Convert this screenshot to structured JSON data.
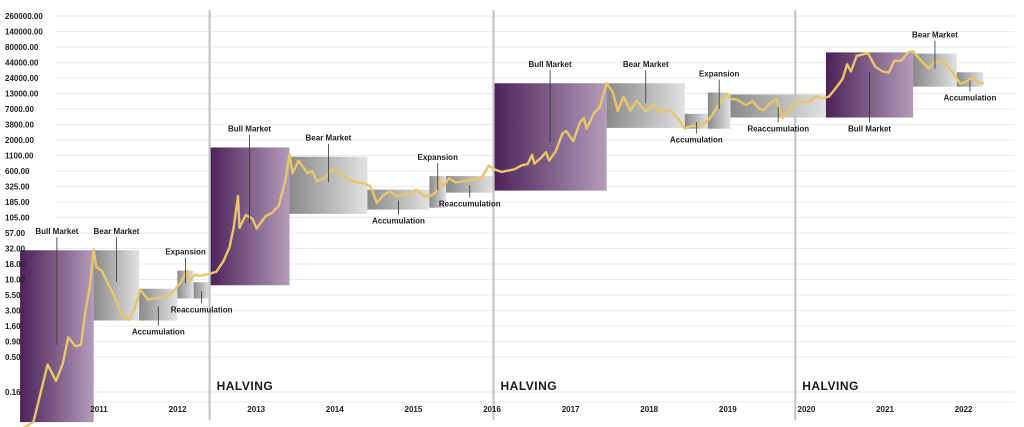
{
  "chart_data": {
    "type": "line",
    "title": "",
    "xlabel": "",
    "ylabel": "",
    "y_scale": "log",
    "y_tick_labels": [
      "260000.00",
      "140000.00",
      "80000.00",
      "44000.00",
      "24000.00",
      "13000.00",
      "7000.00",
      "3800.00",
      "2000.00",
      "1100.00",
      "600.00",
      "325.00",
      "185.00",
      "105.00",
      "57.00",
      "32.00",
      "18.00",
      "10.00",
      "5.50",
      "3.00",
      "1.60",
      "0.90",
      "0.50",
      "0.16"
    ],
    "x_tick_labels": [
      "2011",
      "2012",
      "2013",
      "2014",
      "2015",
      "2016",
      "2017",
      "2018",
      "2019",
      "2020",
      "2021",
      "2022"
    ],
    "line_color": "#e8c66a",
    "halvings": [
      {
        "label": "HALVING",
        "date": "2012-11-28"
      },
      {
        "label": "HALVING",
        "date": "2016-07-09"
      },
      {
        "label": "HALVING",
        "date": "2020-05-11"
      }
    ],
    "phases": [
      {
        "label": "Bull Market",
        "style": "bull",
        "start": "2010-07-01",
        "end": "2011-06-08",
        "low": 0.06,
        "high": 30,
        "label_pos": "above"
      },
      {
        "label": "Bear Market",
        "style": "bear",
        "start": "2011-06-08",
        "end": "2012-01-05",
        "low": 2.0,
        "high": 30,
        "label_pos": "above"
      },
      {
        "label": "Accumulation",
        "style": "bear",
        "start": "2012-01-05",
        "end": "2012-07-01",
        "low": 2.0,
        "high": 7.0,
        "label_pos": "below"
      },
      {
        "label": "Expansion",
        "style": "bear",
        "start": "2012-07-01",
        "end": "2012-09-15",
        "low": 4.8,
        "high": 14,
        "label_pos": "above"
      },
      {
        "label": "Reaccumulation",
        "style": "bear",
        "start": "2012-09-15",
        "end": "2012-11-28",
        "low": 4.8,
        "high": 9.0,
        "label_pos": "below"
      },
      {
        "label": "Bull Market",
        "style": "bull",
        "start": "2012-11-28",
        "end": "2013-12-04",
        "low": 8.0,
        "high": 1500,
        "label_pos": "above"
      },
      {
        "label": "Bear Market",
        "style": "bear",
        "start": "2013-12-04",
        "end": "2014-12-01",
        "low": 120,
        "high": 1050,
        "label_pos": "above"
      },
      {
        "label": "Accumulation",
        "style": "bear",
        "start": "2014-12-01",
        "end": "2015-09-15",
        "low": 140,
        "high": 290,
        "label_pos": "below"
      },
      {
        "label": "Expansion",
        "style": "bear",
        "start": "2015-09-15",
        "end": "2015-12-01",
        "low": 150,
        "high": 490,
        "label_pos": "above"
      },
      {
        "label": "Reaccumulation",
        "style": "bear",
        "start": "2015-12-01",
        "end": "2016-07-09",
        "low": 260,
        "high": 490,
        "label_pos": "below"
      },
      {
        "label": "Bull Market",
        "style": "bull",
        "start": "2016-07-09",
        "end": "2017-12-17",
        "low": 280,
        "high": 19500,
        "label_pos": "above"
      },
      {
        "label": "Bear Market",
        "style": "bear",
        "start": "2017-12-17",
        "end": "2018-12-15",
        "low": 3300,
        "high": 19500,
        "label_pos": "above"
      },
      {
        "label": "Accumulation",
        "style": "bear",
        "start": "2018-12-15",
        "end": "2019-04-01",
        "low": 3200,
        "high": 5800,
        "label_pos": "below"
      },
      {
        "label": "Expansion",
        "style": "bear",
        "start": "2019-04-01",
        "end": "2019-07-15",
        "low": 3200,
        "high": 13500,
        "label_pos": "above"
      },
      {
        "label": "Reaccumulation",
        "style": "bear",
        "start": "2019-07-15",
        "end": "2020-10-01",
        "low": 5000,
        "high": 12500,
        "label_pos": "below"
      },
      {
        "label": "Bull Market",
        "style": "bull",
        "start": "2020-10-01",
        "end": "2021-11-10",
        "low": 5000,
        "high": 65000,
        "label_pos": "below"
      },
      {
        "label": "Bear Market",
        "style": "bear",
        "start": "2021-11-10",
        "end": "2022-06-01",
        "low": 17000,
        "high": 62000,
        "label_pos": "above"
      },
      {
        "label": "Accumulation",
        "style": "bear",
        "start": "2022-06-01",
        "end": "2022-10-01",
        "low": 17000,
        "high": 30000,
        "label_pos": "below"
      }
    ],
    "series": [
      {
        "values": [
          [
            "2010-07-17",
            0.05
          ],
          [
            "2010-09-01",
            0.06
          ],
          [
            "2010-11-06",
            0.39
          ],
          [
            "2010-12-15",
            0.23
          ],
          [
            "2011-01-15",
            0.4
          ],
          [
            "2011-02-10",
            1.05
          ],
          [
            "2011-03-15",
            0.75
          ],
          [
            "2011-04-10",
            0.8
          ],
          [
            "2011-05-01",
            3.0
          ],
          [
            "2011-05-20",
            7.0
          ],
          [
            "2011-06-08",
            31
          ],
          [
            "2011-06-20",
            16
          ],
          [
            "2011-07-15",
            14
          ],
          [
            "2011-08-10",
            9
          ],
          [
            "2011-09-15",
            5
          ],
          [
            "2011-10-20",
            2.3
          ],
          [
            "2011-11-18",
            2.05
          ],
          [
            "2011-12-15",
            3.2
          ],
          [
            "2012-01-10",
            6.8
          ],
          [
            "2012-02-15",
            4.6
          ],
          [
            "2012-03-15",
            4.8
          ],
          [
            "2012-04-15",
            4.9
          ],
          [
            "2012-05-15",
            5.1
          ],
          [
            "2012-06-15",
            6.5
          ],
          [
            "2012-07-15",
            8.8
          ],
          [
            "2012-08-16",
            14
          ],
          [
            "2012-08-25",
            9.5
          ],
          [
            "2012-09-20",
            12
          ],
          [
            "2012-10-15",
            11.5
          ],
          [
            "2012-11-28",
            12.4
          ],
          [
            "2012-12-30",
            13.5
          ],
          [
            "2013-01-31",
            20
          ],
          [
            "2013-02-28",
            33
          ],
          [
            "2013-03-20",
            70
          ],
          [
            "2013-04-09",
            230
          ],
          [
            "2013-04-16",
            70
          ],
          [
            "2013-05-15",
            115
          ],
          [
            "2013-06-15",
            100
          ],
          [
            "2013-07-05",
            68
          ],
          [
            "2013-08-15",
            110
          ],
          [
            "2013-09-15",
            125
          ],
          [
            "2013-10-15",
            160
          ],
          [
            "2013-11-15",
            420
          ],
          [
            "2013-12-04",
            1150
          ],
          [
            "2013-12-18",
            550
          ],
          [
            "2014-01-15",
            900
          ],
          [
            "2014-02-25",
            550
          ],
          [
            "2014-03-20",
            600
          ],
          [
            "2014-04-10",
            400
          ],
          [
            "2014-05-15",
            450
          ],
          [
            "2014-06-15",
            620
          ],
          [
            "2014-07-15",
            620
          ],
          [
            "2014-08-18",
            470
          ],
          [
            "2014-09-20",
            400
          ],
          [
            "2014-10-15",
            380
          ],
          [
            "2014-11-15",
            370
          ],
          [
            "2014-12-15",
            330
          ],
          [
            "2015-01-14",
            180
          ],
          [
            "2015-02-15",
            240
          ],
          [
            "2015-03-15",
            270
          ],
          [
            "2015-04-15",
            230
          ],
          [
            "2015-05-15",
            237
          ],
          [
            "2015-06-15",
            240
          ],
          [
            "2015-07-15",
            290
          ],
          [
            "2015-08-20",
            230
          ],
          [
            "2015-09-20",
            230
          ],
          [
            "2015-10-15",
            265
          ],
          [
            "2015-11-04",
            420
          ],
          [
            "2015-11-20",
            330
          ],
          [
            "2015-12-15",
            450
          ],
          [
            "2016-01-15",
            380
          ],
          [
            "2016-02-15",
            400
          ],
          [
            "2016-03-15",
            415
          ],
          [
            "2016-04-15",
            430
          ],
          [
            "2016-05-15",
            455
          ],
          [
            "2016-06-17",
            750
          ],
          [
            "2016-07-09",
            650
          ],
          [
            "2016-08-15",
            580
          ],
          [
            "2016-09-15",
            610
          ],
          [
            "2016-10-15",
            640
          ],
          [
            "2016-11-15",
            740
          ],
          [
            "2016-12-15",
            790
          ],
          [
            "2017-01-05",
            1130
          ],
          [
            "2017-01-15",
            800
          ],
          [
            "2017-02-15",
            1000
          ],
          [
            "2017-03-10",
            1250
          ],
          [
            "2017-03-25",
            900
          ],
          [
            "2017-04-25",
            1300
          ],
          [
            "2017-05-25",
            2600
          ],
          [
            "2017-06-12",
            2900
          ],
          [
            "2017-07-15",
            1900
          ],
          [
            "2017-08-15",
            4200
          ],
          [
            "2017-09-02",
            4900
          ],
          [
            "2017-09-15",
            3200
          ],
          [
            "2017-10-20",
            6000
          ],
          [
            "2017-11-15",
            7500
          ],
          [
            "2017-12-17",
            19500
          ],
          [
            "2018-01-15",
            13500
          ],
          [
            "2018-02-06",
            6500
          ],
          [
            "2018-03-05",
            11500
          ],
          [
            "2018-04-06",
            6600
          ],
          [
            "2018-05-05",
            9800
          ],
          [
            "2018-06-15",
            6400
          ],
          [
            "2018-07-25",
            8200
          ],
          [
            "2018-08-15",
            6300
          ],
          [
            "2018-09-15",
            6500
          ],
          [
            "2018-10-15",
            6400
          ],
          [
            "2018-11-20",
            4400
          ],
          [
            "2018-12-15",
            3200
          ],
          [
            "2019-01-15",
            3600
          ],
          [
            "2019-02-15",
            3600
          ],
          [
            "2019-03-15",
            3900
          ],
          [
            "2019-04-15",
            5100
          ],
          [
            "2019-05-15",
            7800
          ],
          [
            "2019-06-26",
            12900
          ],
          [
            "2019-07-15",
            10500
          ],
          [
            "2019-08-15",
            10200
          ],
          [
            "2019-09-25",
            8200
          ],
          [
            "2019-10-26",
            9500
          ],
          [
            "2019-11-25",
            7100
          ],
          [
            "2019-12-17",
            6700
          ],
          [
            "2020-01-15",
            8800
          ],
          [
            "2020-02-13",
            10300
          ],
          [
            "2020-03-13",
            4900
          ],
          [
            "2020-04-15",
            7000
          ],
          [
            "2020-05-15",
            9500
          ],
          [
            "2020-06-15",
            9400
          ],
          [
            "2020-07-15",
            9200
          ],
          [
            "2020-08-15",
            11800
          ],
          [
            "2020-09-15",
            10700
          ],
          [
            "2020-10-15",
            11500
          ],
          [
            "2020-11-15",
            16000
          ],
          [
            "2020-12-17",
            23000
          ],
          [
            "2021-01-08",
            41000
          ],
          [
            "2021-01-25",
            31000
          ],
          [
            "2021-02-21",
            57000
          ],
          [
            "2021-03-15",
            59000
          ],
          [
            "2021-04-14",
            63500
          ],
          [
            "2021-05-19",
            37000
          ],
          [
            "2021-06-22",
            31000
          ],
          [
            "2021-07-20",
            29700
          ],
          [
            "2021-08-15",
            47000
          ],
          [
            "2021-09-15",
            47000
          ],
          [
            "2021-10-20",
            66000
          ],
          [
            "2021-11-10",
            68000
          ],
          [
            "2021-12-15",
            48000
          ],
          [
            "2022-01-22",
            35000
          ],
          [
            "2022-02-15",
            44000
          ],
          [
            "2022-03-28",
            47500
          ],
          [
            "2022-05-10",
            31000
          ],
          [
            "2022-06-18",
            19000
          ],
          [
            "2022-07-15",
            21000
          ],
          [
            "2022-08-15",
            24000
          ],
          [
            "2022-09-15",
            20000
          ],
          [
            "2022-10-01",
            19500
          ]
        ]
      }
    ]
  }
}
